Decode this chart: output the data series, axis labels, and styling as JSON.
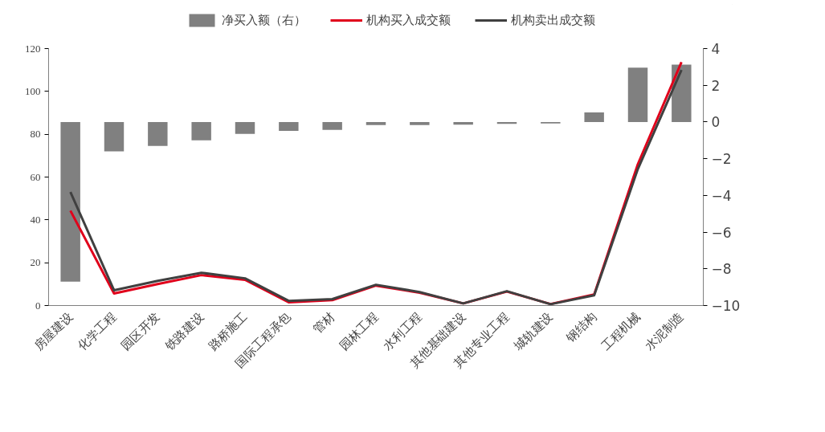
{
  "chart_data": {
    "type": "line",
    "categories": [
      "房屋建设",
      "化学工程",
      "园区开发",
      "铁路建设",
      "路桥施工",
      "国际工程承包",
      "管材",
      "园林工程",
      "水利工程",
      "其他基础建设",
      "其他专业工程",
      "城轨建设",
      "钢结构",
      "工程机械",
      "水泥制造"
    ],
    "series": [
      {
        "name": "净买入额（右）",
        "type": "bar",
        "axis": "y2",
        "color": "#808080",
        "values": [
          -8.7,
          -1.6,
          -1.3,
          -1.0,
          -0.65,
          -0.48,
          -0.43,
          -0.17,
          -0.17,
          -0.15,
          -0.1,
          -0.08,
          0.52,
          2.96,
          3.13
        ]
      },
      {
        "name": "机构买入成交额",
        "color": "#e0001b",
        "values": [
          44.3,
          5.6,
          10,
          14.2,
          12,
          1.5,
          2.5,
          9.3,
          6,
          1,
          6.5,
          0.7,
          5.2,
          66,
          113.7
        ]
      },
      {
        "name": "机构卖出成交额",
        "color": "#404040",
        "values": [
          53,
          7.1,
          11.5,
          15.3,
          12.7,
          2.2,
          3,
          9.7,
          6.3,
          1,
          6.7,
          0.6,
          4.8,
          63.7,
          110
        ]
      }
    ],
    "ylim": [
      0,
      120
    ],
    "yticks": [
      0,
      20,
      40,
      60,
      80,
      100,
      120
    ],
    "y2lim": [
      -10,
      4
    ],
    "y2ticks": [
      -10,
      -8,
      -6,
      -4,
      -2,
      0,
      2,
      4
    ],
    "legend": "top",
    "grid": false,
    "marker": "none",
    "line_style": "solid"
  }
}
